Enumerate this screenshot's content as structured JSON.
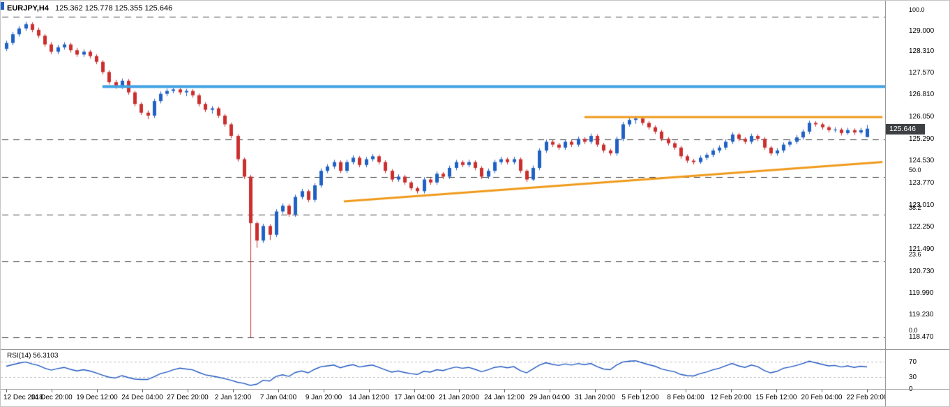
{
  "colors": {
    "background": "#ffffff",
    "up_candle": "#1f61c4",
    "down_candle": "#cc2e2e",
    "fib_line": "#454545",
    "blue_line": "#44a4e4",
    "orange": "#ef9a1b",
    "rsi_line": "#2057c0",
    "rsi_levels": "#bbbbbb",
    "price_tag_bg": "#3d4043",
    "price_tag_text": "#ffffff",
    "separator": "#9a9a9a"
  },
  "header": {
    "symbol": "EURJPY,H4",
    "ohlc_text": "125.362 125.778 125.355 125.646"
  },
  "price_axis": {
    "tick_labels": [
      "129.000",
      "128.310",
      "127.570",
      "126.810",
      "126.050",
      "125.290",
      "124.530",
      "123.770",
      "123.010",
      "122.250",
      "121.490",
      "120.730",
      "119.990",
      "119.230",
      "118.470"
    ],
    "current_price": "125.646"
  },
  "time_axis": {
    "tick_labels": [
      "12 Dec 2018",
      "14 Dec 20:00",
      "19 Dec 12:00",
      "24 Dec 04:00",
      "27 Dec 20:00",
      "2 Jan 12:00",
      "7 Jan 04:00",
      "9 Jan 20:00",
      "14 Jan 12:00",
      "17 Jan 04:00",
      "21 Jan 20:00",
      "24 Jan 12:00",
      "29 Jan 04:00",
      "31 Jan 20:00",
      "5 Feb 12:00",
      "8 Feb 04:00",
      "12 Feb 20:00",
      "15 Feb 12:00",
      "20 Feb 04:00",
      "22 Feb 20:00"
    ]
  },
  "rsi_pane": {
    "label_text": "RSI(14) 56.3103",
    "level_labels": [
      "70",
      "30",
      "0"
    ]
  },
  "chart_data": [
    {
      "type": "candlestick",
      "title": "EURJPY,H4",
      "x_range": [
        "12 Dec 2018 00:00",
        "22 Feb 2019 20:00"
      ],
      "ylim": [
        118.47,
        129.6
      ],
      "last_price": 125.646,
      "fib_retracement": [
        {
          "label": "0.0",
          "price": 118.47
        },
        {
          "label": "23.6",
          "price": 121.074
        },
        {
          "label": "38.2",
          "price": 122.686
        },
        {
          "label": "50.0",
          "price": 123.988
        },
        {
          "label": "61.8",
          "price": 125.29
        },
        {
          "label": "100.0",
          "price": 129.506
        }
      ],
      "overlays": {
        "blue_resistance_line": {
          "price": 127.1,
          "x_start_frac": 0.115,
          "x_end_frac": 1.0
        },
        "orange_resistance_line": {
          "price": 126.05,
          "x_start_frac": 0.66,
          "x_end_frac": 0.997
        },
        "orange_trendline": {
          "x1_frac": 0.388,
          "price1": 123.15,
          "x2_frac": 0.997,
          "price2": 124.5
        }
      },
      "candles": [
        [
          128.4,
          128.68,
          128.32,
          128.6
        ],
        [
          128.6,
          128.98,
          128.52,
          128.9
        ],
        [
          128.9,
          129.18,
          128.82,
          129.1
        ],
        [
          129.1,
          129.33,
          129.02,
          129.25
        ],
        [
          129.25,
          129.31,
          128.97,
          129.05
        ],
        [
          129.05,
          129.13,
          128.77,
          128.85
        ],
        [
          128.85,
          128.91,
          128.47,
          128.55
        ],
        [
          128.55,
          128.63,
          128.22,
          128.3
        ],
        [
          128.3,
          128.53,
          128.22,
          128.45
        ],
        [
          128.45,
          128.63,
          128.37,
          128.55
        ],
        [
          128.55,
          128.61,
          128.27,
          128.35
        ],
        [
          128.35,
          128.43,
          128.12,
          128.2
        ],
        [
          128.2,
          128.38,
          128.12,
          128.3
        ],
        [
          128.3,
          128.36,
          128.07,
          128.15
        ],
        [
          128.15,
          128.21,
          127.87,
          127.95
        ],
        [
          127.95,
          128.01,
          127.52,
          127.6
        ],
        [
          127.6,
          127.66,
          127.17,
          127.25
        ],
        [
          127.25,
          127.33,
          127.02,
          127.1
        ],
        [
          127.1,
          127.38,
          127.02,
          127.3
        ],
        [
          127.3,
          127.36,
          126.82,
          126.9
        ],
        [
          126.9,
          126.96,
          126.42,
          126.5
        ],
        [
          126.5,
          126.56,
          126.12,
          126.2
        ],
        [
          126.2,
          126.28,
          125.98,
          126.1
        ],
        [
          126.1,
          126.68,
          126.02,
          126.6
        ],
        [
          126.6,
          126.93,
          126.52,
          126.85
        ],
        [
          126.85,
          127.03,
          126.77,
          126.95
        ],
        [
          126.95,
          127.09,
          126.87,
          127.0
        ],
        [
          127.0,
          127.07,
          126.82,
          126.9
        ],
        [
          126.9,
          127.02,
          126.77,
          126.95
        ],
        [
          126.95,
          127.01,
          126.72,
          126.8
        ],
        [
          126.8,
          126.86,
          126.42,
          126.5
        ],
        [
          126.5,
          126.56,
          126.22,
          126.3
        ],
        [
          126.3,
          126.43,
          126.17,
          126.35
        ],
        [
          126.35,
          126.41,
          126.02,
          126.1
        ],
        [
          126.1,
          126.16,
          125.72,
          125.8
        ],
        [
          125.8,
          125.86,
          125.32,
          125.4
        ],
        [
          125.4,
          125.46,
          124.52,
          124.6
        ],
        [
          124.6,
          124.66,
          123.92,
          124.0
        ],
        [
          124.0,
          124.06,
          118.47,
          122.4
        ],
        [
          122.4,
          122.46,
          121.55,
          121.8
        ],
        [
          121.8,
          122.38,
          121.72,
          122.3
        ],
        [
          122.3,
          122.36,
          121.82,
          122.0
        ],
        [
          122.0,
          122.88,
          121.92,
          122.8
        ],
        [
          122.8,
          123.08,
          122.72,
          123.0
        ],
        [
          123.0,
          123.06,
          122.62,
          122.7
        ],
        [
          122.7,
          123.38,
          122.62,
          123.3
        ],
        [
          123.3,
          123.58,
          123.22,
          123.5
        ],
        [
          123.5,
          123.56,
          123.12,
          123.2
        ],
        [
          123.2,
          123.78,
          123.12,
          123.7
        ],
        [
          123.7,
          124.28,
          123.62,
          124.2
        ],
        [
          124.2,
          124.43,
          124.12,
          124.35
        ],
        [
          124.35,
          124.58,
          124.27,
          124.5
        ],
        [
          124.5,
          124.56,
          124.12,
          124.2
        ],
        [
          124.2,
          124.58,
          124.12,
          124.5
        ],
        [
          124.5,
          124.73,
          124.42,
          124.65
        ],
        [
          124.65,
          124.71,
          124.32,
          124.4
        ],
        [
          124.4,
          124.68,
          124.32,
          124.6
        ],
        [
          124.6,
          124.78,
          124.52,
          124.7
        ],
        [
          124.7,
          124.76,
          124.42,
          124.5
        ],
        [
          124.5,
          124.56,
          124.12,
          124.2
        ],
        [
          124.2,
          124.26,
          123.82,
          123.9
        ],
        [
          123.9,
          124.08,
          123.82,
          124.0
        ],
        [
          124.0,
          124.06,
          123.72,
          123.8
        ],
        [
          123.8,
          123.86,
          123.52,
          123.6
        ],
        [
          123.6,
          123.66,
          123.42,
          123.5
        ],
        [
          123.5,
          123.98,
          123.42,
          123.9
        ],
        [
          123.9,
          123.96,
          123.72,
          123.8
        ],
        [
          123.8,
          124.18,
          123.72,
          124.1
        ],
        [
          124.1,
          124.16,
          123.92,
          124.0
        ],
        [
          124.0,
          124.38,
          123.92,
          124.3
        ],
        [
          124.3,
          124.58,
          124.22,
          124.5
        ],
        [
          124.5,
          124.56,
          124.32,
          124.4
        ],
        [
          124.4,
          124.58,
          124.32,
          124.5
        ],
        [
          124.5,
          124.56,
          124.22,
          124.3
        ],
        [
          124.3,
          124.36,
          123.92,
          124.0
        ],
        [
          124.0,
          124.28,
          123.92,
          124.2
        ],
        [
          124.2,
          124.58,
          124.12,
          124.5
        ],
        [
          124.5,
          124.68,
          124.42,
          124.6
        ],
        [
          124.6,
          124.66,
          124.42,
          124.5
        ],
        [
          124.5,
          124.68,
          124.42,
          124.6
        ],
        [
          124.6,
          124.66,
          124.12,
          124.2
        ],
        [
          124.2,
          124.26,
          123.82,
          123.9
        ],
        [
          123.9,
          124.38,
          123.85,
          124.3
        ],
        [
          124.3,
          124.98,
          124.22,
          124.9
        ],
        [
          124.9,
          125.28,
          124.82,
          125.2
        ],
        [
          125.2,
          125.26,
          125.02,
          125.1
        ],
        [
          125.1,
          125.16,
          124.92,
          125.0
        ],
        [
          125.0,
          125.28,
          124.92,
          125.2
        ],
        [
          125.2,
          125.26,
          125.02,
          125.1
        ],
        [
          125.1,
          125.38,
          125.02,
          125.3
        ],
        [
          125.3,
          125.36,
          125.12,
          125.2
        ],
        [
          125.2,
          125.48,
          125.12,
          125.4
        ],
        [
          125.4,
          125.46,
          125.02,
          125.1
        ],
        [
          125.1,
          125.16,
          124.82,
          124.9
        ],
        [
          124.9,
          124.96,
          124.72,
          124.8
        ],
        [
          124.8,
          125.38,
          124.72,
          125.3
        ],
        [
          125.3,
          125.88,
          125.22,
          125.8
        ],
        [
          125.8,
          126.02,
          125.72,
          125.95
        ],
        [
          125.95,
          126.06,
          125.82,
          126.0
        ],
        [
          126.0,
          126.04,
          125.77,
          125.85
        ],
        [
          125.85,
          125.91,
          125.62,
          125.7
        ],
        [
          125.7,
          125.76,
          125.47,
          125.55
        ],
        [
          125.55,
          125.61,
          125.22,
          125.3
        ],
        [
          125.3,
          125.36,
          125.07,
          125.15
        ],
        [
          125.15,
          125.21,
          124.92,
          125.0
        ],
        [
          125.0,
          125.06,
          124.62,
          124.7
        ],
        [
          124.7,
          124.76,
          124.47,
          124.55
        ],
        [
          124.55,
          124.61,
          124.42,
          124.5
        ],
        [
          124.5,
          124.73,
          124.44,
          124.65
        ],
        [
          124.65,
          124.83,
          124.57,
          124.75
        ],
        [
          124.75,
          124.98,
          124.67,
          124.9
        ],
        [
          124.9,
          125.08,
          124.82,
          125.0
        ],
        [
          125.0,
          125.28,
          124.92,
          125.2
        ],
        [
          125.2,
          125.53,
          125.12,
          125.45
        ],
        [
          125.45,
          125.51,
          125.22,
          125.3
        ],
        [
          125.3,
          125.36,
          125.12,
          125.2
        ],
        [
          125.2,
          125.48,
          125.12,
          125.4
        ],
        [
          125.4,
          125.46,
          125.22,
          125.3
        ],
        [
          125.3,
          125.36,
          124.92,
          125.0
        ],
        [
          125.0,
          125.06,
          124.72,
          124.8
        ],
        [
          124.8,
          124.98,
          124.72,
          124.9
        ],
        [
          124.9,
          125.18,
          124.82,
          125.1
        ],
        [
          125.1,
          125.28,
          125.02,
          125.2
        ],
        [
          125.2,
          125.43,
          125.12,
          125.35
        ],
        [
          125.35,
          125.63,
          125.27,
          125.55
        ],
        [
          125.55,
          125.93,
          125.47,
          125.85
        ],
        [
          125.85,
          125.91,
          125.72,
          125.8
        ],
        [
          125.8,
          125.86,
          125.62,
          125.7
        ],
        [
          125.7,
          125.76,
          125.52,
          125.6
        ],
        [
          125.6,
          125.7,
          125.52,
          125.62
        ],
        [
          125.62,
          125.68,
          125.42,
          125.5
        ],
        [
          125.5,
          125.68,
          125.44,
          125.6
        ],
        [
          125.6,
          125.66,
          125.44,
          125.52
        ],
        [
          125.52,
          125.68,
          125.46,
          125.6
        ],
        [
          125.36,
          125.78,
          125.36,
          125.65
        ]
      ]
    },
    {
      "type": "line",
      "title": "RSI(14)",
      "current_value": 56.3103,
      "ylim": [
        0,
        100
      ],
      "levels": [
        70,
        30
      ],
      "values": [
        58,
        62,
        66,
        69,
        64,
        60,
        53,
        48,
        52,
        55,
        50,
        46,
        49,
        46,
        41,
        35,
        30,
        28,
        34,
        29,
        25,
        24,
        24,
        31,
        39,
        43,
        49,
        53,
        51,
        49,
        42,
        36,
        33,
        30,
        26,
        22,
        17,
        14,
        9,
        12,
        22,
        20,
        32,
        36,
        32,
        42,
        46,
        41,
        50,
        57,
        59,
        61,
        54,
        59,
        62,
        56,
        59,
        61,
        55,
        49,
        43,
        46,
        42,
        39,
        37,
        45,
        43,
        49,
        47,
        52,
        56,
        53,
        55,
        50,
        44,
        49,
        55,
        57,
        54,
        57,
        47,
        41,
        51,
        61,
        67,
        63,
        60,
        64,
        61,
        65,
        62,
        65,
        57,
        51,
        49,
        61,
        69,
        71,
        72,
        67,
        62,
        58,
        51,
        47,
        44,
        37,
        34,
        33,
        39,
        43,
        49,
        53,
        59,
        65,
        59,
        55,
        61,
        57,
        47,
        41,
        45,
        53,
        56,
        60,
        65,
        71,
        67,
        63,
        59,
        60,
        56,
        59,
        55,
        58,
        56.31
      ]
    }
  ]
}
